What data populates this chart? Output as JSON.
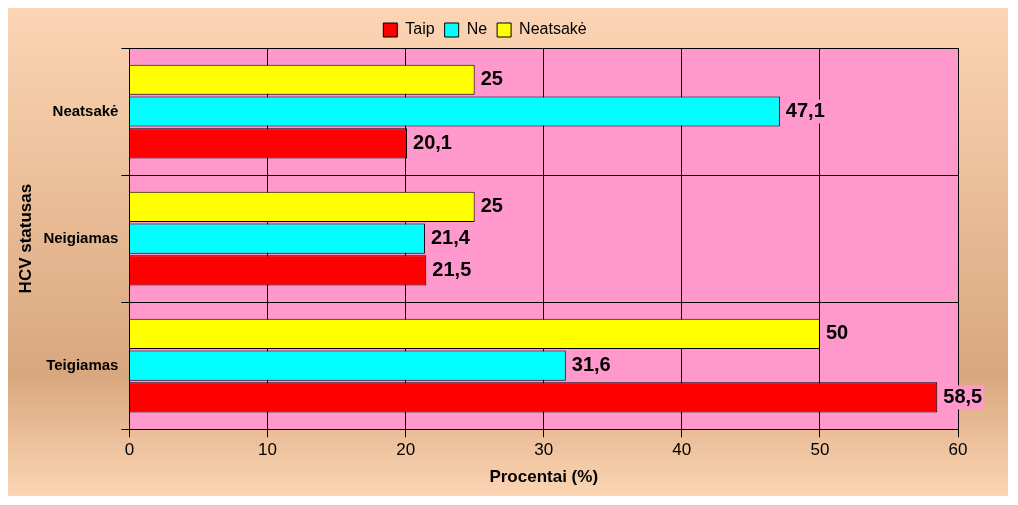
{
  "chart_data": {
    "type": "bar",
    "orientation": "horizontal",
    "xlabel": "Procentai (%)",
    "ylabel": "HCV statusas",
    "categories": [
      "Neatsakė",
      "Neigiamas",
      "Teigiamas"
    ],
    "series": [
      {
        "name": "Taip",
        "color": "#ff0000",
        "values": [
          20.1,
          21.5,
          58.5
        ],
        "value_labels": [
          "20,1",
          "21,5",
          "58,5"
        ]
      },
      {
        "name": "Ne",
        "color": "#00ffff",
        "values": [
          47.1,
          21.4,
          31.6
        ],
        "value_labels": [
          "47,1",
          "21,4",
          "31,6"
        ]
      },
      {
        "name": "Neatsakė",
        "color": "#ffff00",
        "values": [
          25,
          25,
          50
        ],
        "value_labels": [
          "25",
          "25",
          "50"
        ]
      }
    ],
    "xlim": [
      0,
      60
    ],
    "xticks": [
      0,
      10,
      20,
      30,
      40,
      50,
      60
    ],
    "grid": true,
    "legend": "top"
  }
}
